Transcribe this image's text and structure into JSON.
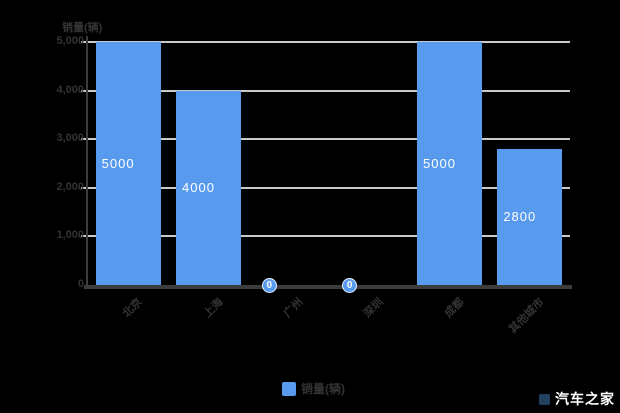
{
  "chart_data": {
    "type": "bar",
    "title": "",
    "y_axis_title": "销量(辆)",
    "categories": [
      "北京",
      "上海",
      "广州",
      "深圳",
      "成都",
      "其他城市"
    ],
    "series": [
      {
        "name": "销量(辆)",
        "values": [
          5000,
          4000,
          0,
          0,
          5000,
          2800
        ]
      }
    ],
    "data_labels": [
      "5000",
      "4000",
      "0",
      "0",
      "5000",
      "2800"
    ],
    "y_ticks": [
      {
        "value": 5000,
        "label": "5,000"
      },
      {
        "value": 4000,
        "label": "4,000"
      },
      {
        "value": 3000,
        "label": "3,000"
      },
      {
        "value": 2000,
        "label": "2,000"
      },
      {
        "value": 1000,
        "label": "1,000"
      },
      {
        "value": 0,
        "label": "0"
      }
    ],
    "ylim": [
      0,
      5000
    ],
    "grid": true,
    "legend_position": "bottom"
  },
  "legend": {
    "label": "销量(辆)"
  },
  "watermark": {
    "text": "汽车之家"
  },
  "colors": {
    "background": "#000000",
    "bar": "#589AEE",
    "grid": "#C9C9C9",
    "axis": "#3C3C3C",
    "muted_text": "#333333",
    "bar_label": "#FFFFFF",
    "watermark_text": "#FFFFFF"
  }
}
